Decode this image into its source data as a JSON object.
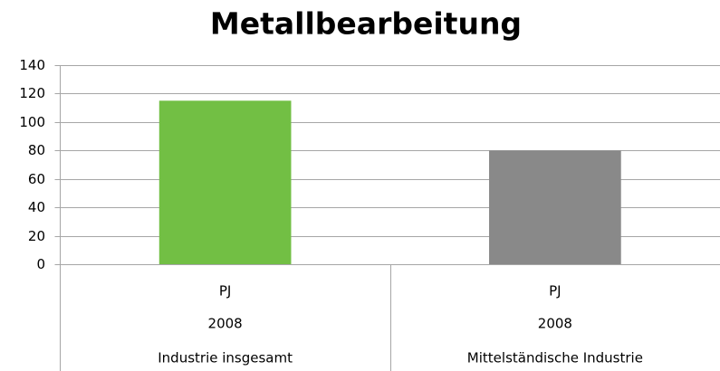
{
  "chart_data": {
    "type": "bar",
    "title": "Metallbearbeitung",
    "categories": [
      [
        "PJ",
        "2008",
        "Industrie insgesamt"
      ],
      [
        "PJ",
        "2008",
        "Mittelständische Industrie"
      ]
    ],
    "values": [
      115,
      80
    ],
    "colors": [
      "#72bf44",
      "#898989"
    ],
    "ylim": [
      0,
      140
    ],
    "yticks": [
      0,
      20,
      40,
      60,
      80,
      100,
      120,
      140
    ],
    "grid": true
  }
}
